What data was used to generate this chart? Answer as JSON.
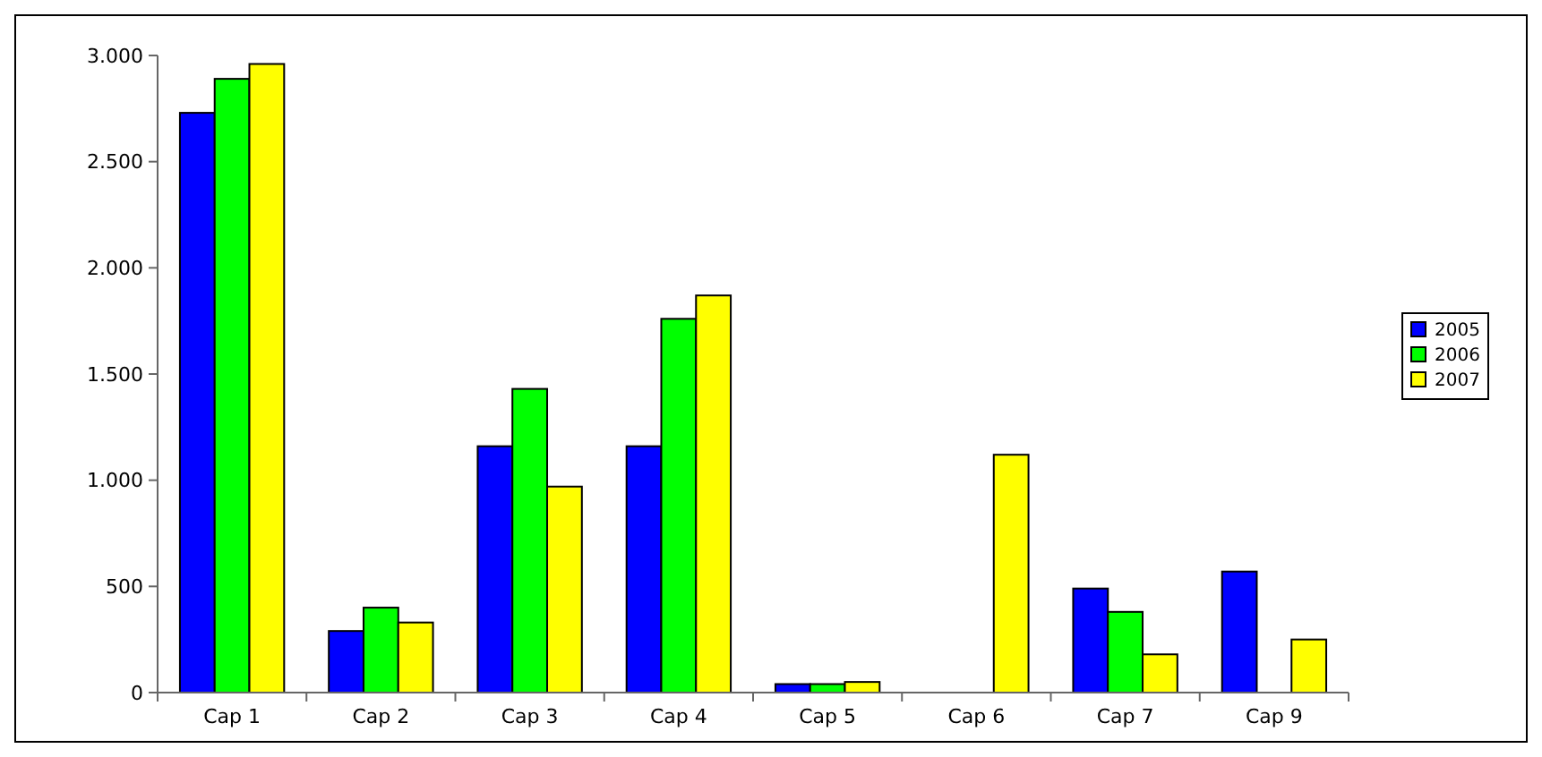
{
  "chart_data": {
    "type": "bar",
    "categories": [
      "Cap 1",
      "Cap 2",
      "Cap 3",
      "Cap 4",
      "Cap 5",
      "Cap 6",
      "Cap 7",
      "Cap 9"
    ],
    "series": [
      {
        "name": "2005",
        "color": "#0000ff",
        "values": [
          2730,
          290,
          1160,
          1160,
          40,
          0,
          490,
          570
        ]
      },
      {
        "name": "2006",
        "color": "#00ff00",
        "values": [
          2890,
          400,
          1430,
          1760,
          40,
          0,
          380,
          0
        ]
      },
      {
        "name": "2007",
        "color": "#ffff00",
        "values": [
          2960,
          330,
          970,
          1870,
          50,
          1120,
          180,
          250
        ]
      }
    ],
    "ylim": [
      0,
      3000
    ],
    "yticks": [
      {
        "value": 0,
        "label": "0"
      },
      {
        "value": 500,
        "label": "500"
      },
      {
        "value": 1000,
        "label": "1.000"
      },
      {
        "value": 1500,
        "label": "1.500"
      },
      {
        "value": 2000,
        "label": "2.000"
      },
      {
        "value": 2500,
        "label": "2.500"
      },
      {
        "value": 3000,
        "label": "3.000"
      }
    ],
    "grid": false,
    "legend": "right"
  }
}
